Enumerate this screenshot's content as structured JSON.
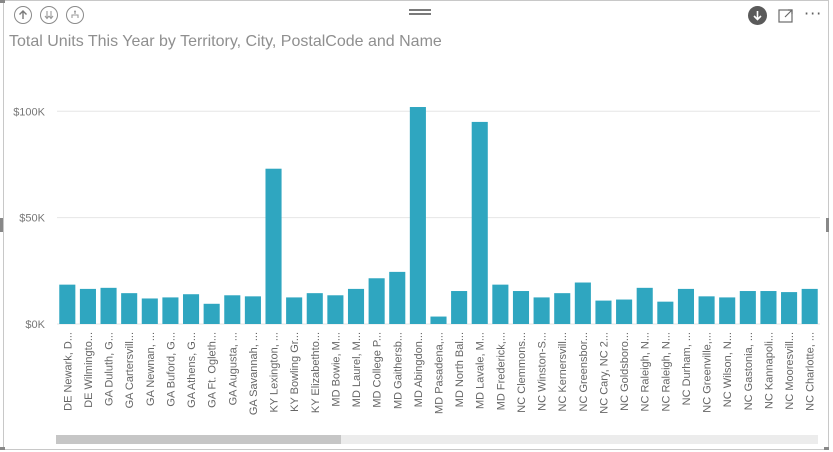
{
  "visual": {
    "title": "Total Units This Year by Territory, City, PostalCode and Name"
  },
  "header": {
    "icons": [
      "drill-up-icon",
      "drill-down-all-icon",
      "expand-hierarchy-icon",
      "drag-grip-icon",
      "drill-mode-icon",
      "focus-mode-icon",
      "more-options-icon"
    ],
    "more_label": "···"
  },
  "chart_data": {
    "type": "bar",
    "title": "Total Units This Year by Territory, City, PostalCode and Name",
    "xlabel": "",
    "ylabel": "",
    "ylim": [
      0,
      110000
    ],
    "yticks": [
      0,
      50000,
      100000
    ],
    "ytick_labels": [
      "$0K",
      "$50K",
      "$100K"
    ],
    "grid": true,
    "bar_color": "#2fa6c0",
    "categories": [
      "DE Newark, D...",
      "DE Wilmingto...",
      "GA Duluth, G...",
      "GA Cartersvill...",
      "GA Newnan, ...",
      "GA Buford, G...",
      "GA Athens, G...",
      "GA Ft. Ogleth...",
      "GA Augusta, ...",
      "GA Savannah, ...",
      "KY Lexington, ...",
      "KY Bowling Gr...",
      "KY Elizabethto...",
      "MD Bowie, M...",
      "MD Laurel, M...",
      "MD College P...",
      "MD Gaithersb...",
      "MD Abingdon...",
      "MD Pasadena,...",
      "MD North Bal...",
      "MD Lavale, M...",
      "MD Frederick,...",
      "NC Clemmons...",
      "NC Winston-S...",
      "NC Kernersvill...",
      "NC Greensbor...",
      "NC Cary, NC 2...",
      "NC Goldsboro...",
      "NC Raleigh, N...",
      "NC Raleigh, N...",
      "NC Durham, ...",
      "NC Greenville,...",
      "NC Wilson, N...",
      "NC Gastonia, ...",
      "NC Kannapoli...",
      "NC Mooresvill...",
      "NC Charlotte, ..."
    ],
    "values": [
      18500,
      16500,
      17000,
      14500,
      12000,
      12500,
      14000,
      9500,
      13500,
      13000,
      73000,
      12500,
      14500,
      13500,
      16500,
      21500,
      24500,
      102000,
      3500,
      15500,
      95000,
      18500,
      15500,
      12500,
      14500,
      19500,
      11000,
      11500,
      17000,
      10500,
      16500,
      13000,
      12500,
      15500,
      15500,
      15000,
      16500
    ]
  },
  "scrollbar": {
    "position_fraction": 0.0,
    "visible_fraction": 0.37
  }
}
